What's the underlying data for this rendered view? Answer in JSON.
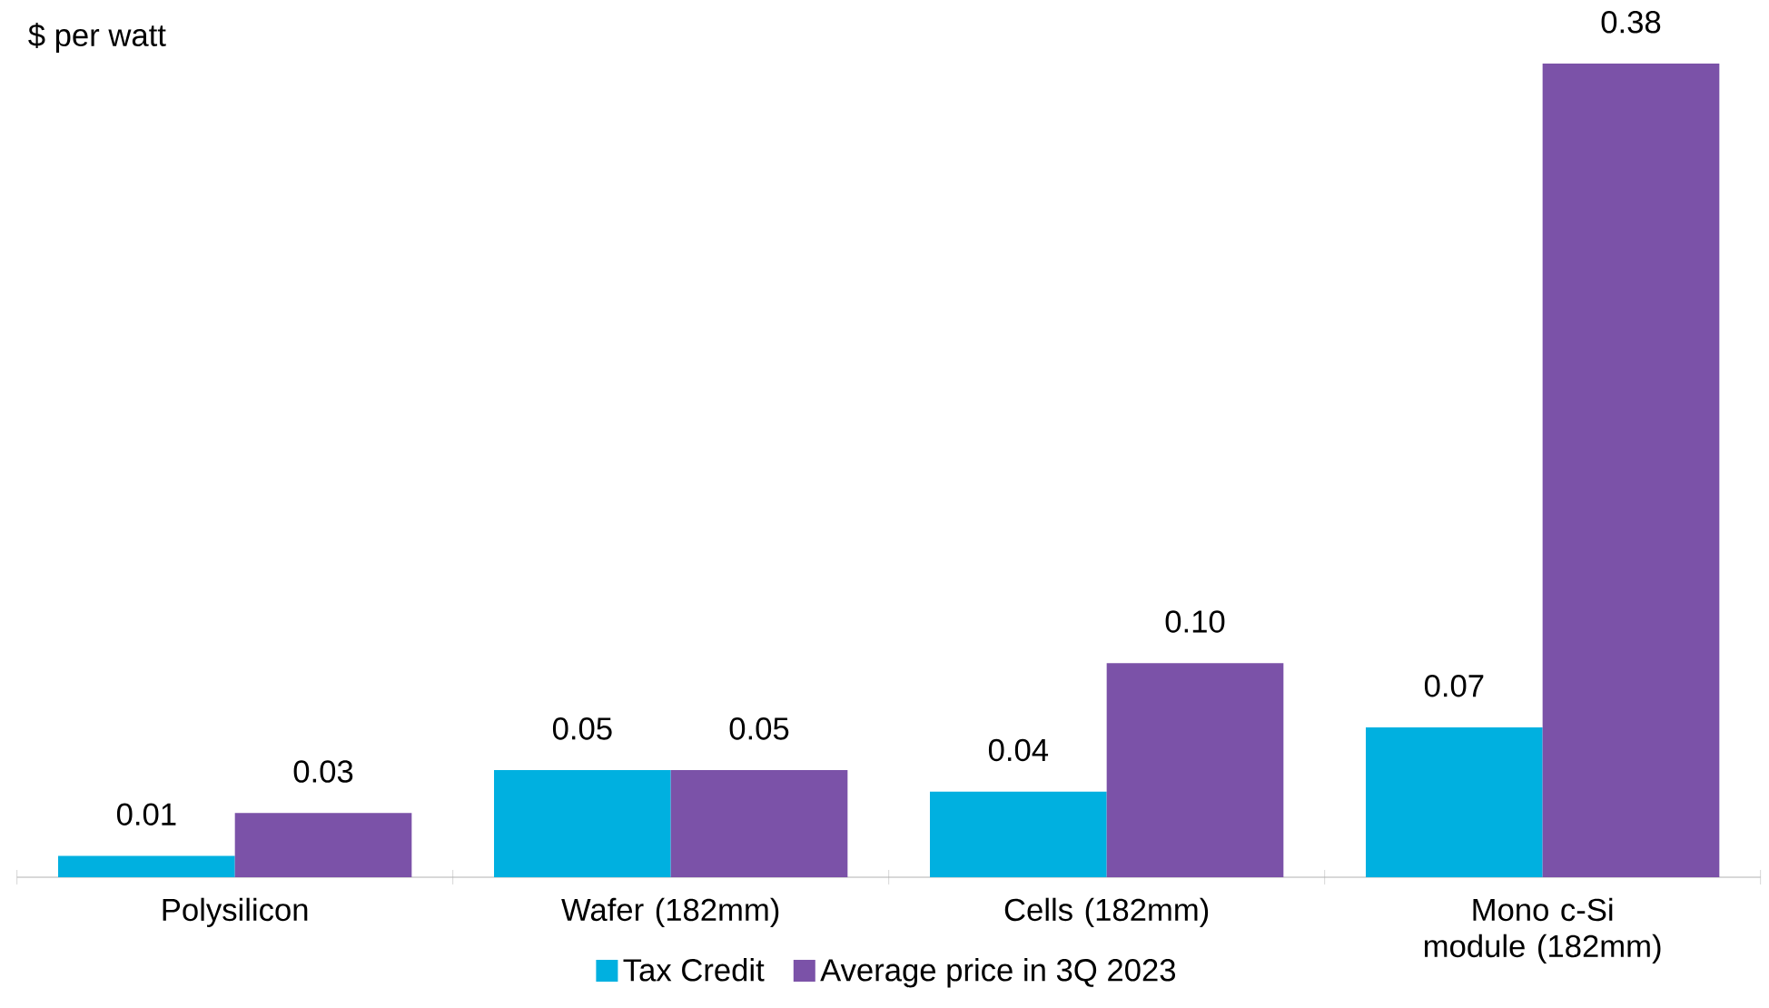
{
  "chart_data": {
    "type": "bar",
    "ylabel": "$ per watt",
    "categories": [
      "Polysilicon",
      "Wafer (182mm)",
      "Cells (182mm)",
      "Mono c-Si module (182mm)"
    ],
    "legend": "bottom",
    "series": [
      {
        "name": "Tax Credit",
        "color": "#00b0e0",
        "values": [
          0.01,
          0.05,
          0.04,
          0.07
        ],
        "value_labels": [
          "0.01",
          "0.05",
          "0.04",
          "0.07"
        ]
      },
      {
        "name": "Average price in 3Q 2023",
        "color": "#7b52a8",
        "values": [
          0.03,
          0.05,
          0.1,
          0.38
        ],
        "value_labels": [
          "0.03",
          "0.05",
          "0.10",
          "0.38"
        ]
      }
    ]
  }
}
